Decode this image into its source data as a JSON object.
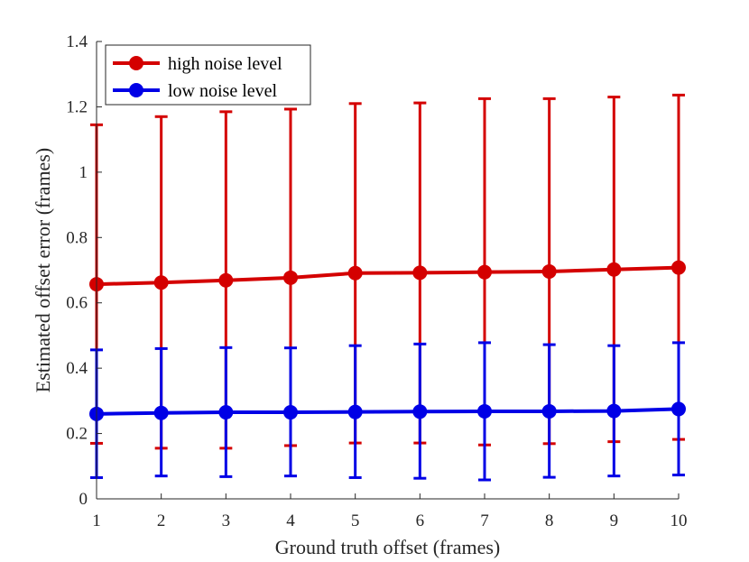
{
  "chart_data": {
    "type": "line",
    "title": "",
    "xlabel": "Ground truth offset (frames)",
    "ylabel": "Estimated offset error (frames)",
    "xlim": [
      1,
      10
    ],
    "ylim": [
      0,
      1.4
    ],
    "x": [
      1,
      2,
      3,
      4,
      5,
      6,
      7,
      8,
      9,
      10
    ],
    "x_ticks": [
      "1",
      "2",
      "3",
      "4",
      "5",
      "6",
      "7",
      "8",
      "9",
      "10"
    ],
    "y_ticks": [
      "0",
      "0.2",
      "0.4",
      "0.6",
      "0.8",
      "1",
      "1.2",
      "1.4"
    ],
    "grid": false,
    "legend_position": "top-left",
    "series": [
      {
        "name": "high noise level",
        "color": "#d40000",
        "values": [
          0.657,
          0.662,
          0.669,
          0.677,
          0.691,
          0.692,
          0.694,
          0.696,
          0.702,
          0.708
        ],
        "error_lower": [
          0.17,
          0.155,
          0.155,
          0.163,
          0.171,
          0.171,
          0.165,
          0.169,
          0.175,
          0.182
        ],
        "error_upper": [
          1.145,
          1.17,
          1.185,
          1.193,
          1.21,
          1.212,
          1.225,
          1.225,
          1.23,
          1.236
        ]
      },
      {
        "name": "low noise level",
        "color": "#0000e6",
        "values": [
          0.26,
          0.263,
          0.265,
          0.265,
          0.266,
          0.267,
          0.268,
          0.268,
          0.269,
          0.275
        ],
        "error_lower": [
          0.065,
          0.07,
          0.068,
          0.07,
          0.065,
          0.063,
          0.058,
          0.066,
          0.07,
          0.073
        ],
        "error_upper": [
          0.456,
          0.46,
          0.463,
          0.462,
          0.469,
          0.474,
          0.478,
          0.472,
          0.469,
          0.478
        ]
      }
    ]
  }
}
